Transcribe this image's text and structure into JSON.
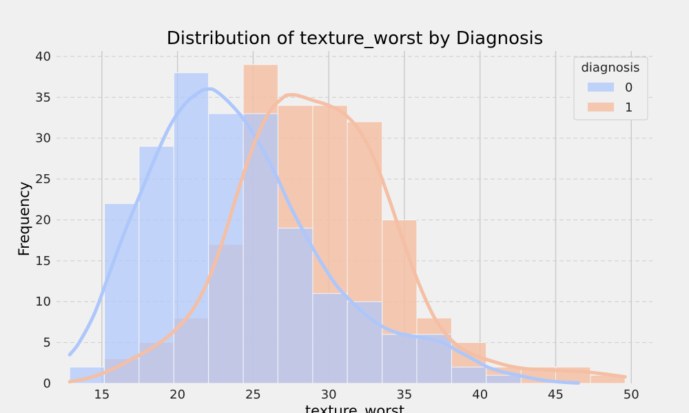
{
  "chart_data": {
    "type": "histogram",
    "title": "Distribution of texture_worst by Diagnosis",
    "xlabel": "texture_worst",
    "ylabel": "Frequency",
    "xlim": [
      12.0,
      51.4
    ],
    "ylim": [
      0,
      40.5
    ],
    "x_ticks": [
      15,
      20,
      25,
      30,
      35,
      40,
      45,
      50
    ],
    "y_ticks": [
      0,
      5,
      10,
      15,
      20,
      25,
      30,
      35,
      40
    ],
    "grid": true,
    "legend": {
      "title": "diagnosis",
      "position": "top-right"
    },
    "bin_edges": [
      12.87,
      15.17,
      17.46,
      19.76,
      22.05,
      24.35,
      26.64,
      28.94,
      31.23,
      33.53,
      35.82,
      38.12,
      40.41,
      42.71,
      45.0,
      47.3,
      49.59
    ],
    "series": [
      {
        "name": "0",
        "color": "#aec7fb",
        "counts": [
          2,
          22,
          29,
          38,
          33,
          33,
          19,
          11,
          10,
          6,
          6,
          2,
          1,
          0,
          0,
          0
        ],
        "kde_x": [
          12.87,
          13.5,
          14.5,
          15.5,
          16.5,
          17.5,
          18.5,
          19.5,
          20.5,
          21.5,
          22.0,
          22.5,
          23.5,
          24.5,
          25.5,
          26.5,
          27.5,
          28.5,
          29.5,
          30.5,
          31.5,
          32.5,
          33.5,
          34.5,
          35.5,
          36.5,
          37.5,
          38.5,
          39.5,
          40.5,
          41.5,
          42.5,
          43.5,
          44.5,
          45.5,
          46.5
        ],
        "kde_y": [
          3.5,
          5.0,
          8.5,
          13.5,
          18.5,
          23.0,
          27.5,
          31.5,
          34.2,
          35.7,
          36.0,
          35.8,
          34.2,
          32.0,
          29.0,
          25.5,
          21.5,
          18.0,
          14.8,
          12.0,
          10.0,
          8.3,
          7.0,
          6.2,
          5.8,
          5.5,
          5.0,
          4.0,
          3.0,
          2.0,
          1.4,
          1.0,
          0.6,
          0.3,
          0.15,
          0.05
        ]
      },
      {
        "name": "1",
        "color": "#f4bfa5",
        "counts": [
          0,
          3,
          5,
          8,
          17,
          39,
          34,
          34,
          32,
          20,
          8,
          5,
          2,
          2,
          2,
          1
        ],
        "kde_x": [
          12.87,
          14.0,
          15.0,
          16.0,
          17.0,
          18.0,
          19.0,
          20.0,
          21.0,
          22.0,
          23.0,
          24.0,
          25.0,
          26.0,
          27.0,
          27.5,
          28.0,
          29.0,
          30.0,
          31.0,
          32.0,
          33.0,
          34.0,
          35.0,
          36.0,
          37.0,
          38.0,
          39.0,
          40.0,
          41.0,
          42.0,
          43.0,
          44.0,
          45.0,
          46.0,
          47.0,
          48.0,
          49.59
        ],
        "kde_y": [
          0.2,
          0.6,
          1.2,
          2.0,
          3.0,
          4.0,
          5.2,
          6.8,
          9.0,
          12.5,
          17.5,
          23.5,
          29.0,
          33.0,
          35.0,
          35.3,
          35.2,
          34.6,
          34.0,
          33.0,
          31.0,
          27.5,
          22.5,
          17.0,
          12.0,
          8.0,
          5.5,
          4.0,
          3.2,
          2.6,
          2.1,
          1.8,
          1.7,
          1.6,
          1.5,
          1.4,
          1.2,
          0.8
        ]
      }
    ]
  }
}
